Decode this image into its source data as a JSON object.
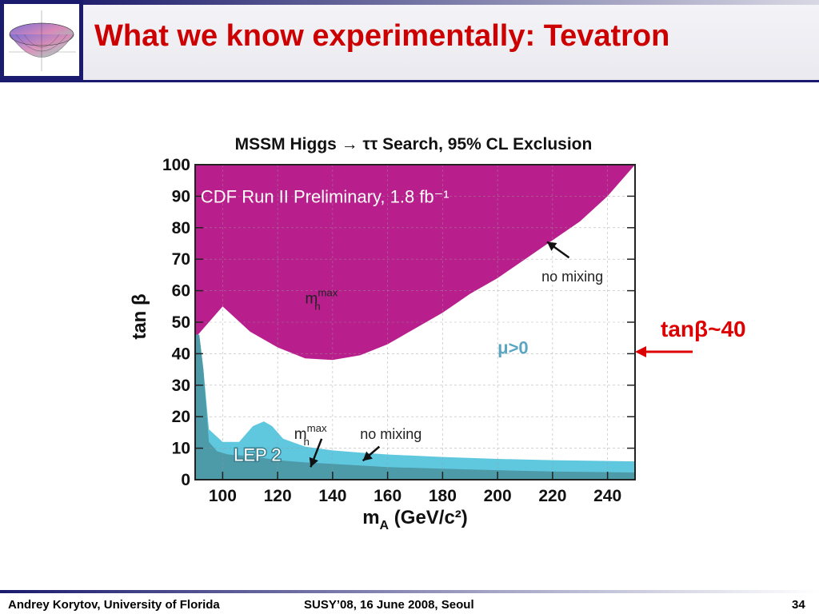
{
  "slide": {
    "title": "What we know experimentally: Tevatron",
    "annotation": "tanβ~40",
    "footer_left": "Andrey Korytov, University of Florida",
    "footer_center": "SUSY’08, 16 June 2008, Seoul",
    "page_number": "34"
  },
  "colors": {
    "title": "#cc0000",
    "accent": "#dd0000",
    "cdf_excluded": "#b81f8d",
    "cdf_band": "#e27ac1",
    "lep_light": "#5fc8df",
    "lep_dark": "#4d9aa8",
    "header_dark": "#1a1a6e"
  },
  "chart_data": {
    "type": "area",
    "title": "MSSM Higgs → ττ Search, 95% CL Exclusion",
    "xlabel": "m_A (GeV/c²)",
    "ylabel": "tan β",
    "xlim": [
      90,
      250
    ],
    "ylim": [
      0,
      100
    ],
    "xticks": [
      100,
      120,
      140,
      160,
      180,
      200,
      220,
      240
    ],
    "yticks": [
      0,
      10,
      20,
      30,
      40,
      50,
      60,
      70,
      80,
      90,
      100
    ],
    "grid": true,
    "series": [
      {
        "key": "cdf_mhmax",
        "x": [
          90,
          100,
          110,
          120,
          130,
          140,
          150,
          160,
          170,
          180,
          190,
          200,
          210,
          220,
          230,
          240,
          250
        ],
        "y": [
          45,
          55,
          47,
          42,
          38.5,
          38,
          39.5,
          43,
          48,
          53,
          59,
          64,
          70,
          76,
          82,
          90,
          100
        ]
      },
      {
        "key": "cdf_nomixing",
        "x": [
          90,
          100,
          110,
          120,
          130,
          140,
          150,
          160,
          170,
          180,
          190,
          200,
          210,
          220,
          230,
          240,
          250
        ],
        "y": [
          46,
          55,
          47.5,
          42.5,
          39,
          38.5,
          40,
          44,
          49.5,
          55,
          61,
          67,
          73,
          79,
          86,
          93,
          100
        ]
      },
      {
        "key": "lep_nomixing",
        "x": [
          90,
          91.5,
          93,
          95,
          100,
          106,
          111,
          115,
          118,
          122,
          130,
          140,
          150,
          160,
          180,
          200,
          220,
          250
        ],
        "y": [
          46,
          46,
          35,
          16,
          12,
          12,
          17,
          18.5,
          17,
          13,
          10.5,
          9.3,
          8.6,
          8,
          7.2,
          6.6,
          6.2,
          5.8
        ]
      },
      {
        "key": "lep_mhmax",
        "x": [
          90,
          91.5,
          93,
          95,
          98,
          102,
          110,
          120,
          130,
          140,
          150,
          160,
          180,
          200,
          220,
          250
        ],
        "y": [
          46,
          46,
          35,
          12,
          9,
          8,
          7.5,
          6.2,
          5.5,
          5,
          4.5,
          4,
          3.5,
          3,
          2.6,
          2.3
        ]
      }
    ],
    "annotations": [
      {
        "text": "CDF Run II Preliminary, 1.8 fb⁻¹",
        "x": 92,
        "y": 88
      },
      {
        "text": "m_h^max",
        "x": 130,
        "y": 56
      },
      {
        "text": "no mixing",
        "x": 216,
        "y": 63
      },
      {
        "text": "μ>0",
        "x": 200,
        "y": 40
      },
      {
        "text": "m_h^max",
        "x": 126,
        "y": 13
      },
      {
        "text": "no mixing",
        "x": 150,
        "y": 13
      },
      {
        "text": "LEP 2",
        "x": 104,
        "y": 6
      }
    ]
  }
}
